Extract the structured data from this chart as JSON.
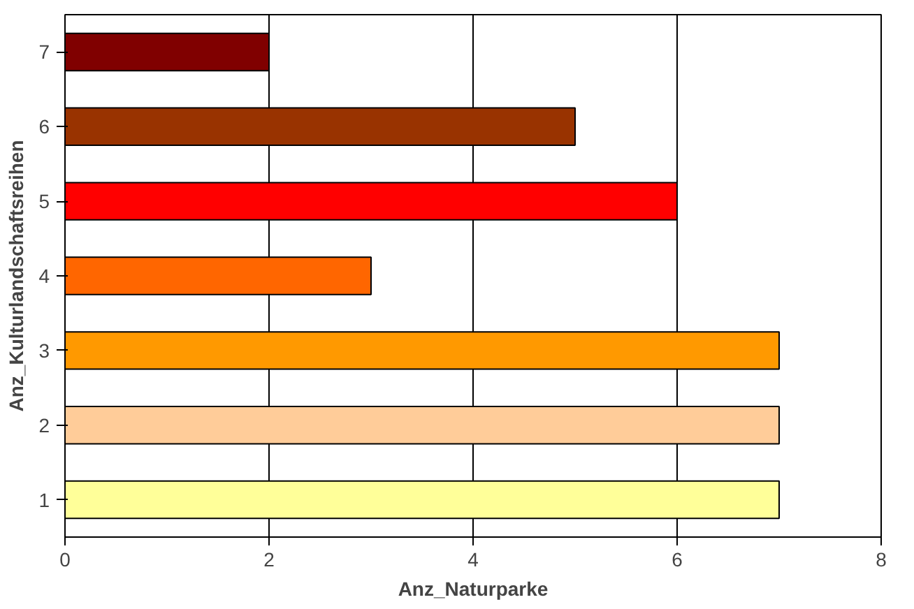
{
  "chart_data": {
    "type": "bar",
    "orientation": "horizontal",
    "xlabel": "Anz_Naturparke",
    "ylabel": "Anz_Kulturlandschaftsreihen",
    "categories": [
      "7",
      "6",
      "5",
      "4",
      "3",
      "2",
      "1"
    ],
    "values": [
      2,
      5,
      6,
      3,
      7,
      7,
      7
    ],
    "colors": [
      "#800000",
      "#993300",
      "#ff0000",
      "#ff6600",
      "#ff9900",
      "#ffcc99",
      "#ffff99"
    ],
    "xlim": [
      0,
      8
    ],
    "xticks": [
      0,
      2,
      4,
      6,
      8
    ],
    "grid": "x"
  }
}
